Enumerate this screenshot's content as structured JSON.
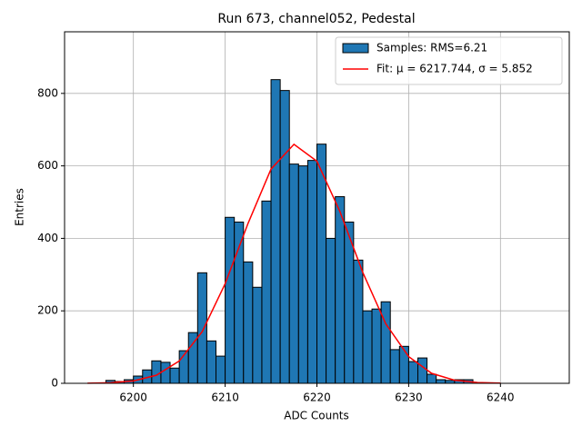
{
  "chart_data": {
    "type": "histogram",
    "title": "Run 673, channel052, Pedestal",
    "xlabel": "ADC Counts",
    "ylabel": "Entries",
    "name": "Samples: RMS=6.21",
    "color": "#1f77b4",
    "edgecolor": "#000000",
    "bins": [
      6197,
      6198,
      6199,
      6200,
      6201,
      6202,
      6203,
      6204,
      6205,
      6206,
      6207,
      6208,
      6209,
      6210,
      6211,
      6212,
      6213,
      6214,
      6215,
      6216,
      6217,
      6218,
      6219,
      6220,
      6221,
      6222,
      6223,
      6224,
      6225,
      6226,
      6227,
      6228,
      6229,
      6230,
      6231,
      6232,
      6233,
      6234,
      6235,
      6236,
      6237
    ],
    "counts": [
      8,
      5,
      10,
      20,
      37,
      62,
      58,
      42,
      90,
      140,
      305,
      117,
      75,
      458,
      445,
      335,
      265,
      503,
      838,
      808,
      605,
      600,
      615,
      660,
      400,
      515,
      445,
      340,
      200,
      205,
      225,
      93,
      102,
      60,
      70,
      25,
      10,
      8,
      10,
      10
    ],
    "series": [
      {
        "name": "Fit: μ = 6217.744, σ = 5.852",
        "color": "#ff0000",
        "type": "line",
        "x": [
          6195,
          6197.5,
          6200,
          6202.5,
          6205,
          6207.5,
          6210,
          6212.5,
          6215,
          6217.5,
          6220,
          6222.5,
          6225,
          6227.5,
          6230,
          6232.5,
          6235,
          6237.5,
          6240
        ],
        "values": [
          0.35,
          1.7,
          6.7,
          22.2,
          61.6,
          142.7,
          275,
          441.7,
          591.3,
          659.4,
          612.7,
          474.4,
          306,
          164.5,
          73.7,
          27.5,
          8.5,
          2.2,
          0.5
        ]
      }
    ],
    "xlim": [
      6192.5,
      6247.5
    ],
    "ylim": [
      0,
      970
    ],
    "xticks": [
      6200,
      6210,
      6220,
      6230,
      6240
    ],
    "yticks": [
      0,
      200,
      400,
      600,
      800
    ],
    "grid": true,
    "legend": "upper right"
  }
}
